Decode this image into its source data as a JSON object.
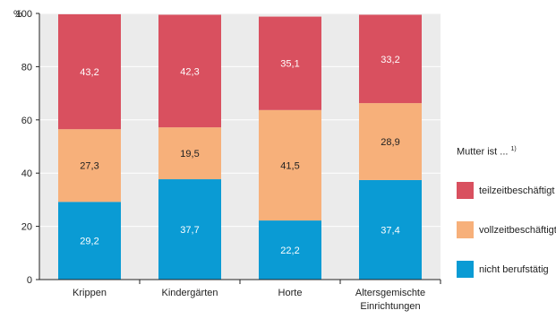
{
  "chart_data": {
    "type": "bar",
    "stacked": true,
    "ylabel": "%",
    "ylim": [
      0,
      100
    ],
    "yticks": [
      "0",
      "20",
      "40",
      "60",
      "80",
      "100"
    ],
    "categories": [
      [
        "Krippen"
      ],
      [
        "Kindergärten"
      ],
      [
        "Horte"
      ],
      [
        "Altersgemischte",
        "Einrichtungen"
      ]
    ],
    "series": [
      {
        "name": "nicht berufstätig",
        "color": "#0a9bd4",
        "label_color": "#ffffff",
        "values": [
          29.2,
          37.7,
          22.2,
          37.4
        ],
        "labels": [
          "29,2",
          "37,7",
          "22,2",
          "37,4"
        ]
      },
      {
        "name": "vollzeitbeschäftigt",
        "color": "#f7b07a",
        "label_color": "#222222",
        "values": [
          27.3,
          19.5,
          41.5,
          28.9
        ],
        "labels": [
          "27,3",
          "19,5",
          "41,5",
          "28,9"
        ]
      },
      {
        "name": "teilzeitbeschäftigt",
        "color": "#d9505f",
        "label_color": "#ffffff",
        "values": [
          43.2,
          42.3,
          35.1,
          33.2
        ],
        "labels": [
          "43,2",
          "42,3",
          "35,1",
          "33,2"
        ]
      }
    ],
    "legend": {
      "title": "Mutter ist ...",
      "footnote": "1)",
      "order": [
        "teilzeitbeschäftigt",
        "vollzeitbeschäftigt",
        "nicht berufstätig"
      ],
      "position": "right"
    },
    "plot_background": "#ebebeb",
    "gridlines": true
  }
}
